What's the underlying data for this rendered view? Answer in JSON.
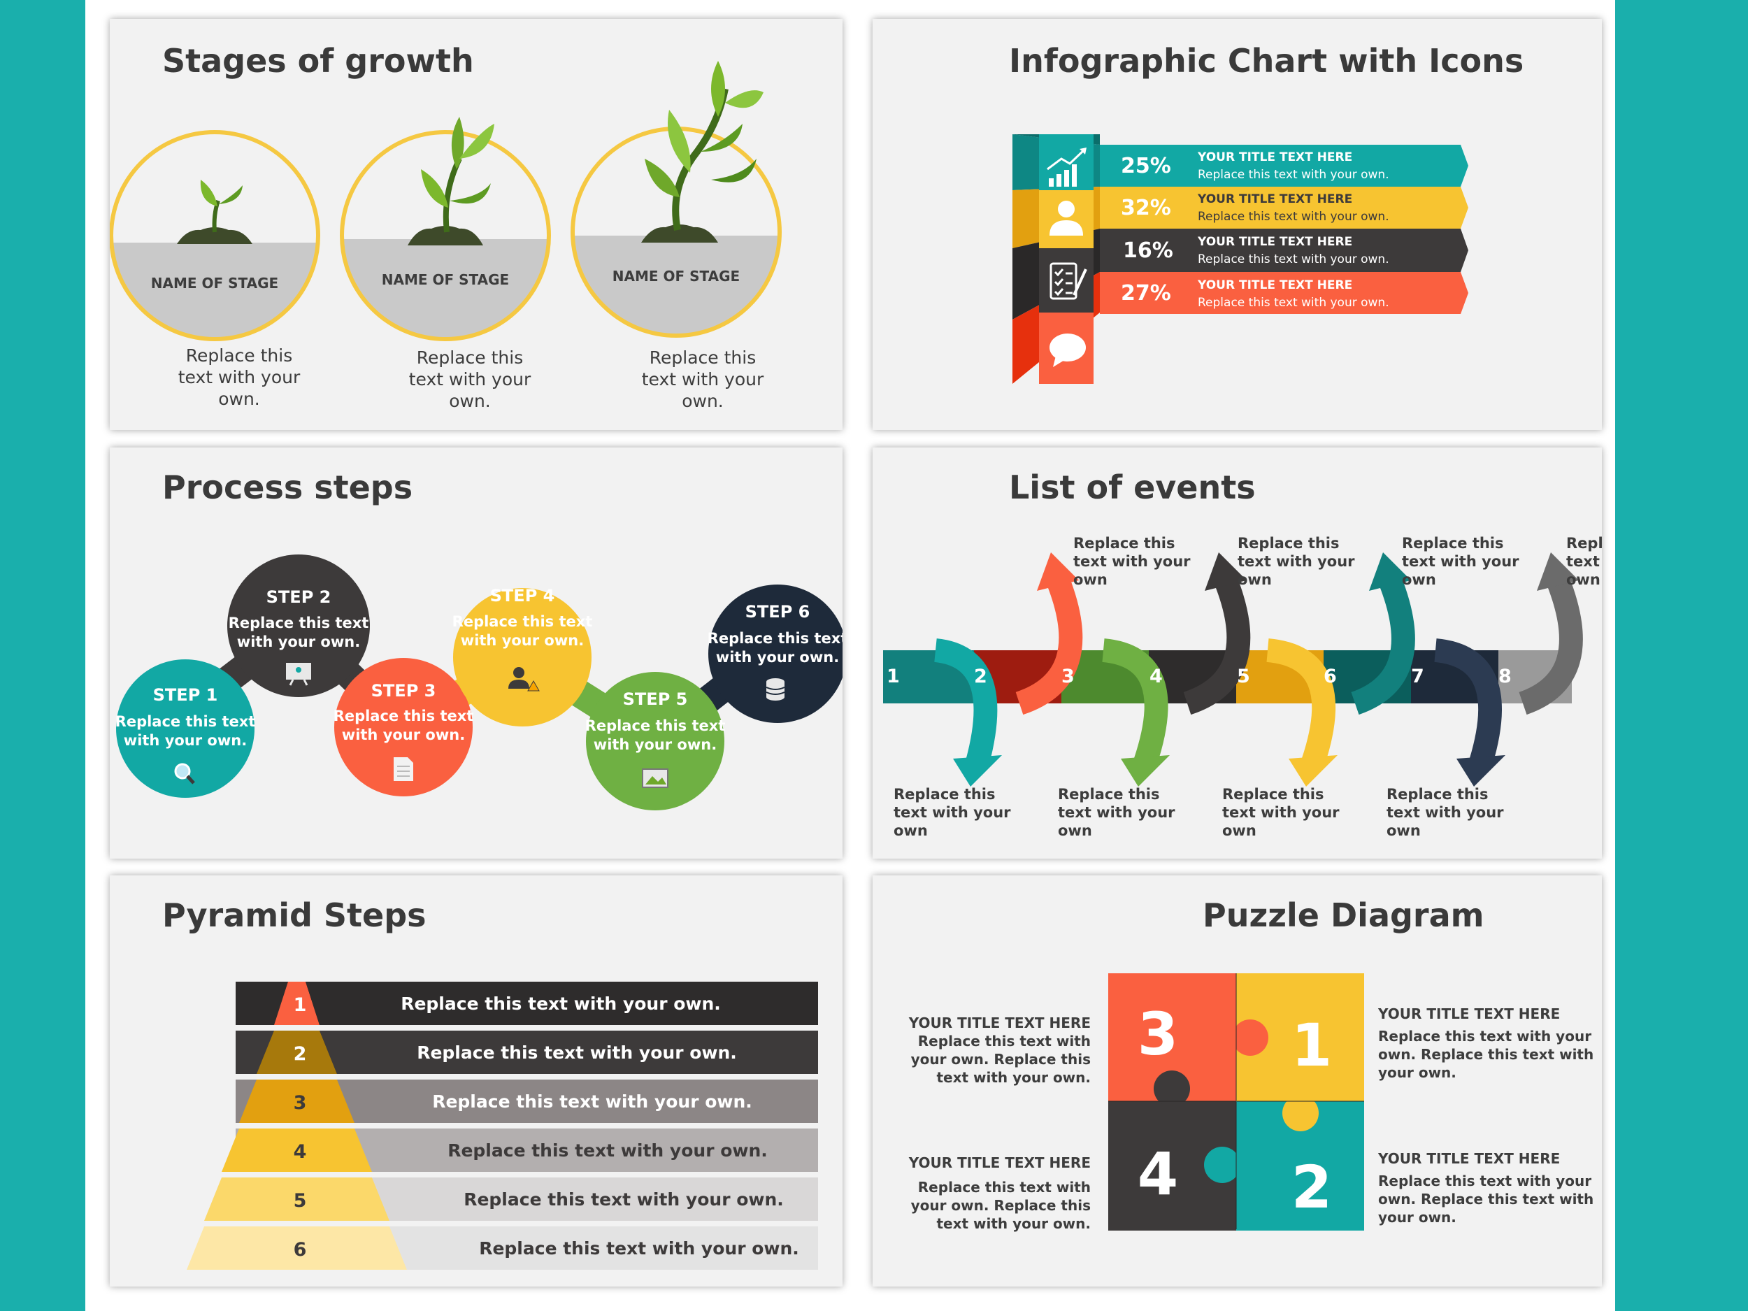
{
  "stages": {
    "title": "Stages of growth",
    "items": [
      {
        "label": "NAME OF STAGE",
        "text": [
          "Replace this",
          "text with your",
          "own."
        ]
      },
      {
        "label": "NAME OF STAGE",
        "text": [
          "Replace this",
          "text with your",
          "own."
        ]
      },
      {
        "label": "NAME OF STAGE",
        "text": [
          "Replace this",
          "text with your",
          "own."
        ]
      }
    ]
  },
  "infographic": {
    "title": "Infographic Chart with Icons",
    "rows": [
      {
        "pct": "25%",
        "title": "YOUR TITLE TEXT HERE",
        "text": "Replace this text with your own.",
        "color": "#12a8a4",
        "icon": "bar-chart-icon"
      },
      {
        "pct": "32%",
        "title": "YOUR TITLE TEXT HERE",
        "text": "Replace this text with your own.",
        "color": "#f7c431",
        "icon": "user-icon"
      },
      {
        "pct": "16%",
        "title": "YOUR TITLE TEXT HERE",
        "text": "Replace this text with your own.",
        "color": "#3d3a3a",
        "icon": "checklist-icon"
      },
      {
        "pct": "27%",
        "title": "YOUR TITLE TEXT HERE",
        "text": "Replace this text with your own.",
        "color": "#fa6040",
        "icon": "speech-bubble-icon"
      }
    ]
  },
  "process": {
    "title": "Process steps",
    "steps": [
      {
        "step": "STEP 1",
        "text": [
          "Replace this text",
          "with your own."
        ],
        "color": "#12a8a4",
        "icon": "magnifier-icon"
      },
      {
        "step": "STEP 2",
        "text": [
          "Replace this text",
          "with your own."
        ],
        "color": "#3d3a3a",
        "icon": "presentation-icon"
      },
      {
        "step": "STEP 3",
        "text": [
          "Replace this text",
          "with your own."
        ],
        "color": "#fa6040",
        "icon": "document-icon"
      },
      {
        "step": "STEP 4",
        "text": [
          "Replace this text",
          "with your own."
        ],
        "color": "#f7c431",
        "icon": "person-warning-icon"
      },
      {
        "step": "STEP 5",
        "text": [
          "Replace this text",
          "with your own."
        ],
        "color": "#6fb043",
        "icon": "image-icon"
      },
      {
        "step": "STEP 6",
        "text": [
          "Replace this text",
          "with your own."
        ],
        "color": "#1e2a3a",
        "icon": "database-icon"
      }
    ]
  },
  "events": {
    "title": "List of events",
    "numbers": [
      "1",
      "2",
      "3",
      "4",
      "5",
      "6",
      "7",
      "8"
    ],
    "colors": [
      "#12a8a4",
      "#9e1c10",
      "#6fb043",
      "#3d3a3a",
      "#f7c431",
      "#12807d",
      "#2c3b52",
      "#8f8f8f"
    ],
    "text": [
      "Replace this",
      "text with your",
      "own"
    ]
  },
  "pyramid": {
    "title": "Pyramid Steps",
    "rows": [
      {
        "num": "1",
        "text": "Replace this text with your own."
      },
      {
        "num": "2",
        "text": "Replace this text with your own."
      },
      {
        "num": "3",
        "text": "Replace this text with your own."
      },
      {
        "num": "4",
        "text": "Replace this text with your own."
      },
      {
        "num": "5",
        "text": "Replace this text with your own."
      },
      {
        "num": "6",
        "text": "Replace this text with your own."
      }
    ]
  },
  "puzzle": {
    "title": "Puzzle Diagram",
    "pieces": [
      {
        "num": "3",
        "color": "#fa6040"
      },
      {
        "num": "1",
        "color": "#f7c431"
      },
      {
        "num": "4",
        "color": "#3d3a3a"
      },
      {
        "num": "2",
        "color": "#12a8a4"
      }
    ],
    "captions": [
      {
        "title": "YOUR TITLE TEXT HERE",
        "lines": [
          "Replace this text with",
          "your own. Replace this",
          "text with your own."
        ]
      },
      {
        "title": "YOUR TITLE TEXT HERE",
        "lines": [
          "Replace this text with your",
          "own. Replace this text with",
          "your own."
        ]
      },
      {
        "title": "YOUR TITLE TEXT HERE",
        "lines": [
          "Replace this text with",
          "your own. Replace this",
          "text with your own."
        ]
      },
      {
        "title": "YOUR TITLE TEXT HERE",
        "lines": [
          "Replace this text with your",
          "own. Replace this text with",
          "your own."
        ]
      }
    ]
  }
}
